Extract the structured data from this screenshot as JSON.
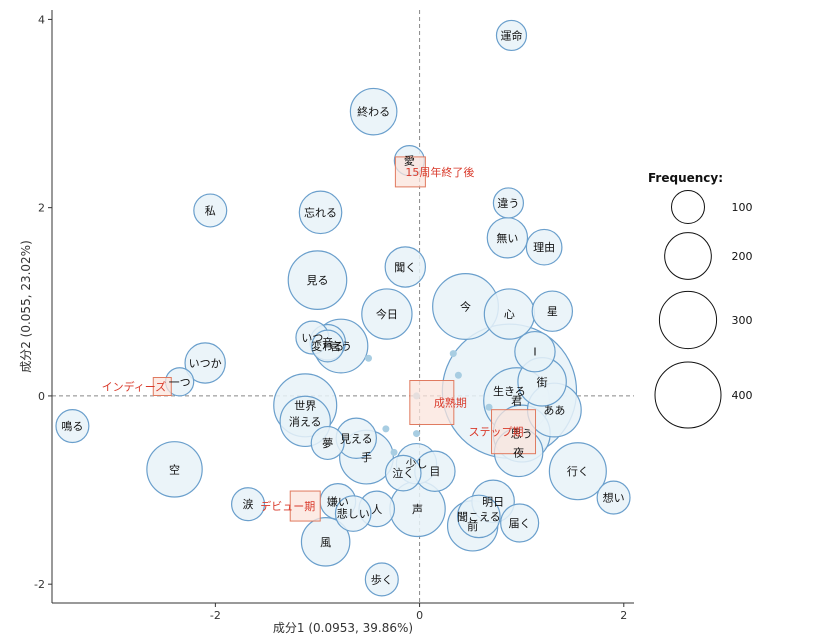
{
  "chart_data": {
    "type": "scatter",
    "title": "",
    "xlabel": "成分1 (0.0953, 39.86%)",
    "ylabel": "成分2 (0.055, 23.02%)",
    "xlim": [
      -3.6,
      2.1
    ],
    "ylim": [
      -2.2,
      4.1
    ],
    "xticks": [
      -2,
      0,
      2
    ],
    "yticks": [
      -2,
      0,
      2,
      4
    ],
    "grid": false,
    "legend": {
      "title": "Frequency:",
      "placement": "right",
      "sizes": [
        100,
        200,
        300,
        400
      ]
    },
    "colors": {
      "bubble_fill": "#e8f2f8",
      "bubble_stroke": "#6a9fcc",
      "small_point": "#a8cde2",
      "group_fill": "#fbe4dc",
      "group_stroke": "#e07a5f",
      "group_text": "#d93a2b",
      "axis": "#333333"
    },
    "words": [
      {
        "label": "運命",
        "x": 0.9,
        "y": 3.83,
        "freq": 25
      },
      {
        "label": "終わる",
        "x": -0.45,
        "y": 3.02,
        "freq": 60
      },
      {
        "label": "愛",
        "x": -0.1,
        "y": 2.5,
        "freq": 25
      },
      {
        "label": "私",
        "x": -2.05,
        "y": 1.97,
        "freq": 30
      },
      {
        "label": "忘れる",
        "x": -0.97,
        "y": 1.95,
        "freq": 50
      },
      {
        "label": "違う",
        "x": 0.87,
        "y": 2.05,
        "freq": 25
      },
      {
        "label": "無い",
        "x": 0.86,
        "y": 1.68,
        "freq": 45
      },
      {
        "label": "理由",
        "x": 1.22,
        "y": 1.58,
        "freq": 35
      },
      {
        "label": "聞く",
        "x": -0.14,
        "y": 1.37,
        "freq": 45
      },
      {
        "label": "見る",
        "x": -1.0,
        "y": 1.23,
        "freq": 95
      },
      {
        "label": "今",
        "x": 0.45,
        "y": 0.95,
        "freq": 120
      },
      {
        "label": "今日",
        "x": -0.32,
        "y": 0.87,
        "freq": 70
      },
      {
        "label": "心",
        "x": 0.88,
        "y": 0.87,
        "freq": 70
      },
      {
        "label": "星",
        "x": 1.3,
        "y": 0.9,
        "freq": 45
      },
      {
        "label": "いつ",
        "x": -1.05,
        "y": 0.62,
        "freq": 30
      },
      {
        "label": "言う",
        "x": -0.77,
        "y": 0.53,
        "freq": 80
      },
      {
        "label": "音",
        "x": -0.9,
        "y": 0.57,
        "freq": 35
      },
      {
        "label": "変わる",
        "x": -0.9,
        "y": 0.53,
        "freq": 28
      },
      {
        "label": "いつか",
        "x": -2.1,
        "y": 0.35,
        "freq": 45
      },
      {
        "label": "I",
        "x": 1.13,
        "y": 0.47,
        "freq": 45
      },
      {
        "label": "一つ",
        "x": -2.35,
        "y": 0.15,
        "freq": 22
      },
      {
        "label": "街",
        "x": 1.2,
        "y": 0.15,
        "freq": 65
      },
      {
        "label": "生きる",
        "x": 0.88,
        "y": 0.05,
        "freq": 500
      },
      {
        "label": "ああ",
        "x": 1.32,
        "y": -0.15,
        "freq": 80
      },
      {
        "label": "君",
        "x": 0.95,
        "y": -0.05,
        "freq": 120
      },
      {
        "label": "世界",
        "x": -1.12,
        "y": -0.1,
        "freq": 110
      },
      {
        "label": "消える",
        "x": -1.12,
        "y": -0.27,
        "freq": 70
      },
      {
        "label": "思う",
        "x": 1.0,
        "y": -0.4,
        "freq": 90
      },
      {
        "label": "鳴る",
        "x": -3.4,
        "y": -0.32,
        "freq": 30
      },
      {
        "label": "見える",
        "x": -0.62,
        "y": -0.45,
        "freq": 45
      },
      {
        "label": "夢",
        "x": -0.9,
        "y": -0.5,
        "freq": 30
      },
      {
        "label": "手",
        "x": -0.52,
        "y": -0.65,
        "freq": 80
      },
      {
        "label": "夜",
        "x": 0.97,
        "y": -0.6,
        "freq": 65
      },
      {
        "label": "少し",
        "x": -0.03,
        "y": -0.72,
        "freq": 45
      },
      {
        "label": "行く",
        "x": 1.55,
        "y": -0.8,
        "freq": 90
      },
      {
        "label": "泣く",
        "x": -0.16,
        "y": -0.82,
        "freq": 35
      },
      {
        "label": "目",
        "x": 0.15,
        "y": -0.8,
        "freq": 45
      },
      {
        "label": "空",
        "x": -2.4,
        "y": -0.78,
        "freq": 85
      },
      {
        "label": "明日",
        "x": 0.72,
        "y": -1.12,
        "freq": 50
      },
      {
        "label": "想い",
        "x": 1.9,
        "y": -1.08,
        "freq": 30
      },
      {
        "label": "涙",
        "x": -1.68,
        "y": -1.15,
        "freq": 30
      },
      {
        "label": "人",
        "x": -0.42,
        "y": -1.2,
        "freq": 35
      },
      {
        "label": "嫌い",
        "x": -0.8,
        "y": -1.12,
        "freq": 35
      },
      {
        "label": "悲しい",
        "x": -0.65,
        "y": -1.25,
        "freq": 35
      },
      {
        "label": "声",
        "x": -0.02,
        "y": -1.2,
        "freq": 85
      },
      {
        "label": "聞こえる",
        "x": 0.58,
        "y": -1.28,
        "freq": 50
      },
      {
        "label": "届く",
        "x": 0.98,
        "y": -1.35,
        "freq": 40
      },
      {
        "label": "前",
        "x": 0.52,
        "y": -1.38,
        "freq": 70
      },
      {
        "label": "風",
        "x": -0.92,
        "y": -1.55,
        "freq": 65
      },
      {
        "label": "歩く",
        "x": -0.37,
        "y": -1.95,
        "freq": 30
      }
    ],
    "small_points": [
      {
        "x": -0.5,
        "y": 0.4
      },
      {
        "x": 0.33,
        "y": 0.45
      },
      {
        "x": 0.38,
        "y": 0.22
      },
      {
        "x": -0.03,
        "y": 0.0
      },
      {
        "x": 0.68,
        "y": -0.12
      },
      {
        "x": -0.33,
        "y": -0.35
      },
      {
        "x": -0.03,
        "y": -0.4
      },
      {
        "x": -0.25,
        "y": -0.6
      }
    ],
    "groups": [
      {
        "label": "15周年終了後",
        "x": -0.09,
        "y": 2.38
      },
      {
        "label": "インディーズ",
        "x": -2.52,
        "y": 0.1
      },
      {
        "label": "成熟期",
        "x": 0.12,
        "y": -0.07
      },
      {
        "label": "ステップ期",
        "x": 0.92,
        "y": -0.38
      },
      {
        "label": "デビュー期",
        "x": -1.12,
        "y": -1.17
      }
    ]
  }
}
